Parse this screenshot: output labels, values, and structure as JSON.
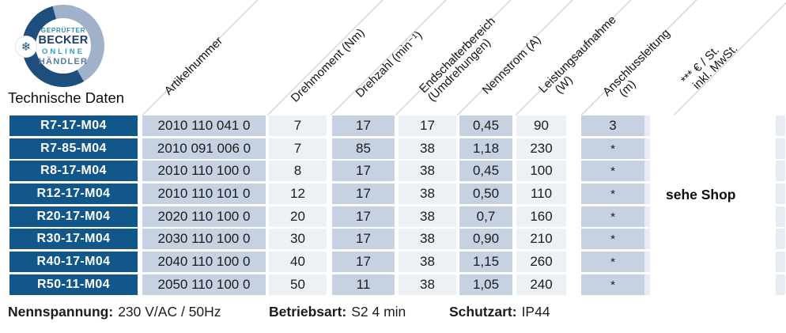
{
  "logo": {
    "line1": "GEPRÜFTER",
    "line2": "BECKER",
    "line3": "ONLINE",
    "line4": "HÄNDLER",
    "snowflake_glyph": "❄"
  },
  "section_title": "Technische Daten",
  "colors": {
    "model_cell_blue": "#11578a",
    "cell_light_blue": "#c6d1e1",
    "cell_pale": "#edf0f5",
    "ring_dark_blue": "#1d4e7c",
    "ring_light_blue": "#9fb2c9"
  },
  "table": {
    "headers": [
      {
        "lines": [
          "Artikelnummer"
        ]
      },
      {
        "lines": [
          "Drehmoment (Nm)"
        ]
      },
      {
        "lines": [
          "Drehzahl (min⁻¹)"
        ]
      },
      {
        "lines": [
          "Endschalterbereich",
          "(Umdrehungen)"
        ]
      },
      {
        "lines": [
          "Nennstrom (A)"
        ]
      },
      {
        "lines": [
          "Leistungsaufnahme",
          "(W)"
        ]
      },
      {
        "lines": [
          "Anschlussleitung",
          "(m)"
        ]
      },
      {
        "lines": [
          "*** € / St.",
          "inkl. MwSt."
        ]
      }
    ],
    "rows": [
      {
        "model": "R7-17-M04",
        "artikelnummer": "2010 110 041 0",
        "drehmoment": "7",
        "drehzahl": "17",
        "endschalterbereich": "17",
        "nennstrom": "0,45",
        "leistungsaufnahme": "90",
        "anschlussleitung": "3"
      },
      {
        "model": "R7-85-M04",
        "artikelnummer": "2010 091 006 0",
        "drehmoment": "7",
        "drehzahl": "85",
        "endschalterbereich": "38",
        "nennstrom": "1,18",
        "leistungsaufnahme": "230",
        "anschlussleitung": "*"
      },
      {
        "model": "R8-17-M04",
        "artikelnummer": "2010 110 100 0",
        "drehmoment": "8",
        "drehzahl": "17",
        "endschalterbereich": "38",
        "nennstrom": "0,45",
        "leistungsaufnahme": "100",
        "anschlussleitung": "*"
      },
      {
        "model": "R12-17-M04",
        "artikelnummer": "2010 110 101 0",
        "drehmoment": "12",
        "drehzahl": "17",
        "endschalterbereich": "38",
        "nennstrom": "0,50",
        "leistungsaufnahme": "110",
        "anschlussleitung": "*"
      },
      {
        "model": "R20-17-M04",
        "artikelnummer": "2020 110 100 0",
        "drehmoment": "20",
        "drehzahl": "17",
        "endschalterbereich": "38",
        "nennstrom": "0,7",
        "leistungsaufnahme": "160",
        "anschlussleitung": "*"
      },
      {
        "model": "R30-17-M04",
        "artikelnummer": "2030 110 100 0",
        "drehmoment": "30",
        "drehzahl": "17",
        "endschalterbereich": "38",
        "nennstrom": "0,90",
        "leistungsaufnahme": "210",
        "anschlussleitung": "*"
      },
      {
        "model": "R40-17-M04",
        "artikelnummer": "2040 110 100 0",
        "drehmoment": "40",
        "drehzahl": "17",
        "endschalterbereich": "38",
        "nennstrom": "1,15",
        "leistungsaufnahme": "260",
        "anschlussleitung": "*"
      },
      {
        "model": "R50-11-M04",
        "artikelnummer": "2050 110 100 0",
        "drehmoment": "50",
        "drehzahl": "11",
        "endschalterbereich": "38",
        "nennstrom": "1,05",
        "leistungsaufnahme": "240",
        "anschlussleitung": "*"
      }
    ],
    "price_note": "sehe Shop"
  },
  "footer": {
    "items": [
      {
        "label": "Nennspannung:",
        "value": "230 V/AC / 50Hz"
      },
      {
        "label": "Betriebsart:",
        "value": "S2 4 min"
      },
      {
        "label": "Schutzart:",
        "value": "IP44"
      }
    ]
  }
}
